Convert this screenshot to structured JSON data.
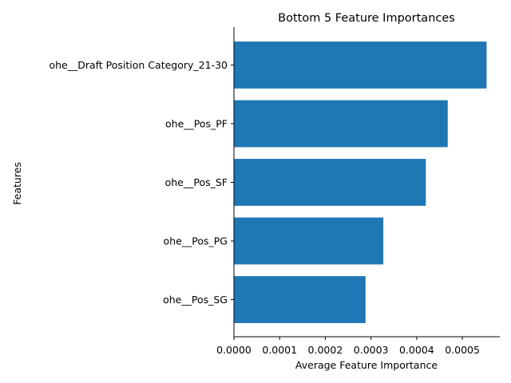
{
  "chart_data": {
    "type": "bar",
    "orientation": "horizontal",
    "title": "Bottom 5 Feature Importances",
    "xlabel": "Average Feature Importance",
    "ylabel": "Features",
    "categories": [
      "ohe__Draft Position Category_21-30",
      "ohe__Pos_PF",
      "ohe__Pos_SF",
      "ohe__Pos_PG",
      "ohe__Pos_SG"
    ],
    "values": [
      0.000553,
      0.000468,
      0.00042,
      0.000327,
      0.000288
    ],
    "xlim": [
      0,
      0.000582
    ],
    "xticks": [
      0.0,
      0.0001,
      0.0002,
      0.0003,
      0.0004,
      0.0005
    ],
    "xtick_labels": [
      "0.0000",
      "0.0001",
      "0.0002",
      "0.0003",
      "0.0004",
      "0.0005"
    ],
    "bar_color": "#1f77b4",
    "grid": false,
    "legend": "none"
  }
}
